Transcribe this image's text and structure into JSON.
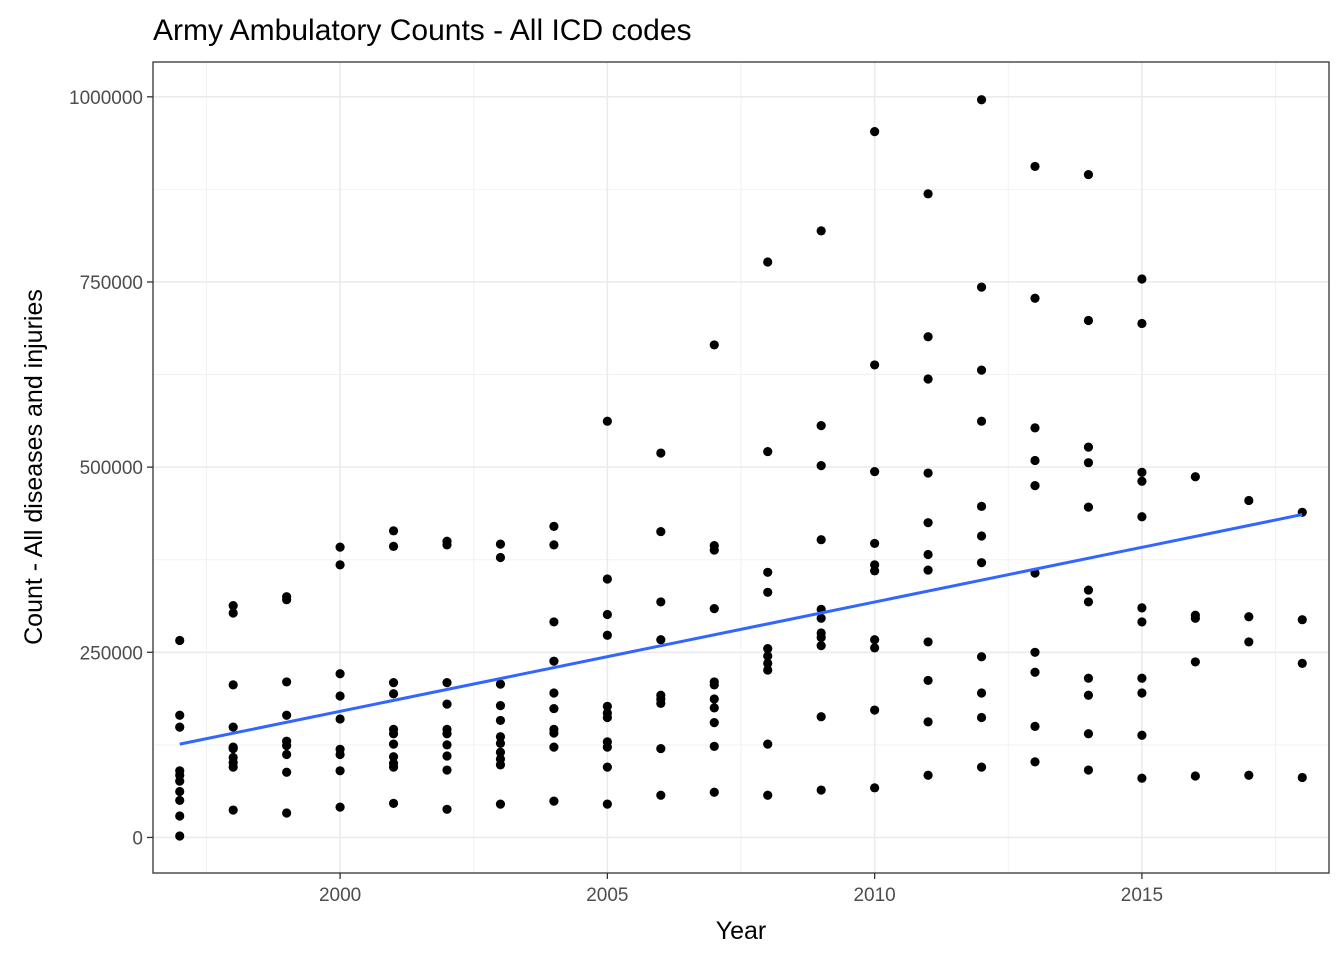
{
  "chart_data": {
    "type": "scatter",
    "title": "Army Ambulatory Counts - All ICD codes",
    "xlabel": "Year",
    "ylabel": "Count - All diseases and injuries",
    "xlim": [
      1996.5,
      2018.5
    ],
    "ylim": [
      -48000,
      1047000
    ],
    "x_ticks": [
      2000,
      2005,
      2010,
      2015
    ],
    "x_tick_labels": [
      "2000",
      "2005",
      "2010",
      "2015"
    ],
    "y_ticks": [
      0,
      250000,
      500000,
      750000,
      1000000
    ],
    "y_tick_labels": [
      "0",
      "250000",
      "500000",
      "750000",
      "1000000"
    ],
    "grid": true,
    "trend_line": {
      "method": "linear",
      "color": "#3366ff",
      "start": [
        1997,
        126000
      ],
      "end": [
        2018,
        436000
      ]
    },
    "points": [
      [
        1997,
        266000
      ],
      [
        1997,
        165000
      ],
      [
        1997,
        149000
      ],
      [
        1997,
        90000
      ],
      [
        1997,
        84000
      ],
      [
        1997,
        76000
      ],
      [
        1997,
        62000
      ],
      [
        1997,
        50000
      ],
      [
        1997,
        29000
      ],
      [
        1997,
        2000
      ],
      [
        1998,
        313000
      ],
      [
        1998,
        303000
      ],
      [
        1998,
        206000
      ],
      [
        1998,
        149000
      ],
      [
        1998,
        122000
      ],
      [
        1998,
        120000
      ],
      [
        1998,
        108000
      ],
      [
        1998,
        101000
      ],
      [
        1998,
        95000
      ],
      [
        1998,
        37000
      ],
      [
        1999,
        325000
      ],
      [
        1999,
        321000
      ],
      [
        1999,
        210000
      ],
      [
        1999,
        165000
      ],
      [
        1999,
        130000
      ],
      [
        1999,
        124000
      ],
      [
        1999,
        112000
      ],
      [
        1999,
        88000
      ],
      [
        1999,
        33000
      ],
      [
        2000,
        392000
      ],
      [
        2000,
        368000
      ],
      [
        2000,
        221000
      ],
      [
        2000,
        191000
      ],
      [
        2000,
        160000
      ],
      [
        2000,
        119000
      ],
      [
        2000,
        112000
      ],
      [
        2000,
        90000
      ],
      [
        2000,
        41000
      ],
      [
        2001,
        414000
      ],
      [
        2001,
        393000
      ],
      [
        2001,
        209000
      ],
      [
        2001,
        194000
      ],
      [
        2001,
        146000
      ],
      [
        2001,
        140000
      ],
      [
        2001,
        126000
      ],
      [
        2001,
        109000
      ],
      [
        2001,
        100000
      ],
      [
        2001,
        95000
      ],
      [
        2001,
        46000
      ],
      [
        2002,
        400000
      ],
      [
        2002,
        395000
      ],
      [
        2002,
        209000
      ],
      [
        2002,
        180000
      ],
      [
        2002,
        146000
      ],
      [
        2002,
        140000
      ],
      [
        2002,
        125000
      ],
      [
        2002,
        110000
      ],
      [
        2002,
        91000
      ],
      [
        2002,
        38000
      ],
      [
        2003,
        396000
      ],
      [
        2003,
        378000
      ],
      [
        2003,
        207000
      ],
      [
        2003,
        178000
      ],
      [
        2003,
        158000
      ],
      [
        2003,
        136000
      ],
      [
        2003,
        127000
      ],
      [
        2003,
        115000
      ],
      [
        2003,
        106000
      ],
      [
        2003,
        98000
      ],
      [
        2003,
        45000
      ],
      [
        2004,
        420000
      ],
      [
        2004,
        395000
      ],
      [
        2004,
        291000
      ],
      [
        2004,
        238000
      ],
      [
        2004,
        195000
      ],
      [
        2004,
        174000
      ],
      [
        2004,
        146000
      ],
      [
        2004,
        141000
      ],
      [
        2004,
        122000
      ],
      [
        2004,
        49000
      ],
      [
        2005,
        562000
      ],
      [
        2005,
        349000
      ],
      [
        2005,
        301000
      ],
      [
        2005,
        273000
      ],
      [
        2005,
        177000
      ],
      [
        2005,
        168000
      ],
      [
        2005,
        162000
      ],
      [
        2005,
        129000
      ],
      [
        2005,
        122000
      ],
      [
        2005,
        95000
      ],
      [
        2005,
        45000
      ],
      [
        2006,
        519000
      ],
      [
        2006,
        413000
      ],
      [
        2006,
        318000
      ],
      [
        2006,
        267000
      ],
      [
        2006,
        192000
      ],
      [
        2006,
        187000
      ],
      [
        2006,
        181000
      ],
      [
        2006,
        120000
      ],
      [
        2006,
        57000
      ],
      [
        2007,
        665000
      ],
      [
        2007,
        394000
      ],
      [
        2007,
        388000
      ],
      [
        2007,
        309000
      ],
      [
        2007,
        210000
      ],
      [
        2007,
        206000
      ],
      [
        2007,
        187000
      ],
      [
        2007,
        175000
      ],
      [
        2007,
        155000
      ],
      [
        2007,
        123000
      ],
      [
        2007,
        61000
      ],
      [
        2008,
        777000
      ],
      [
        2008,
        521000
      ],
      [
        2008,
        358000
      ],
      [
        2008,
        331000
      ],
      [
        2008,
        255000
      ],
      [
        2008,
        245000
      ],
      [
        2008,
        235000
      ],
      [
        2008,
        226000
      ],
      [
        2008,
        126000
      ],
      [
        2008,
        57000
      ],
      [
        2009,
        819000
      ],
      [
        2009,
        556000
      ],
      [
        2009,
        502000
      ],
      [
        2009,
        402000
      ],
      [
        2009,
        308000
      ],
      [
        2009,
        296000
      ],
      [
        2009,
        276000
      ],
      [
        2009,
        270000
      ],
      [
        2009,
        259000
      ],
      [
        2009,
        163000
      ],
      [
        2009,
        64000
      ],
      [
        2010,
        953000
      ],
      [
        2010,
        638000
      ],
      [
        2010,
        494000
      ],
      [
        2010,
        397000
      ],
      [
        2010,
        368000
      ],
      [
        2010,
        360000
      ],
      [
        2010,
        267000
      ],
      [
        2010,
        256000
      ],
      [
        2010,
        172000
      ],
      [
        2010,
        67000
      ],
      [
        2011,
        869000
      ],
      [
        2011,
        676000
      ],
      [
        2011,
        619000
      ],
      [
        2011,
        492000
      ],
      [
        2011,
        425000
      ],
      [
        2011,
        382000
      ],
      [
        2011,
        361000
      ],
      [
        2011,
        264000
      ],
      [
        2011,
        212000
      ],
      [
        2011,
        156000
      ],
      [
        2011,
        84000
      ],
      [
        2012,
        996000
      ],
      [
        2012,
        743000
      ],
      [
        2012,
        631000
      ],
      [
        2012,
        562000
      ],
      [
        2012,
        447000
      ],
      [
        2012,
        407000
      ],
      [
        2012,
        371000
      ],
      [
        2012,
        244000
      ],
      [
        2012,
        195000
      ],
      [
        2012,
        162000
      ],
      [
        2012,
        95000
      ],
      [
        2013,
        906000
      ],
      [
        2013,
        728000
      ],
      [
        2013,
        553000
      ],
      [
        2013,
        509000
      ],
      [
        2013,
        475000
      ],
      [
        2013,
        357000
      ],
      [
        2013,
        250000
      ],
      [
        2013,
        223000
      ],
      [
        2013,
        150000
      ],
      [
        2013,
        102000
      ],
      [
        2014,
        895000
      ],
      [
        2014,
        698000
      ],
      [
        2014,
        527000
      ],
      [
        2014,
        506000
      ],
      [
        2014,
        446000
      ],
      [
        2014,
        334000
      ],
      [
        2014,
        318000
      ],
      [
        2014,
        215000
      ],
      [
        2014,
        192000
      ],
      [
        2014,
        140000
      ],
      [
        2014,
        91000
      ],
      [
        2015,
        754000
      ],
      [
        2015,
        694000
      ],
      [
        2015,
        493000
      ],
      [
        2015,
        481000
      ],
      [
        2015,
        433000
      ],
      [
        2015,
        310000
      ],
      [
        2015,
        291000
      ],
      [
        2015,
        215000
      ],
      [
        2015,
        195000
      ],
      [
        2015,
        138000
      ],
      [
        2015,
        80000
      ],
      [
        2016,
        487000
      ],
      [
        2016,
        300000
      ],
      [
        2016,
        296000
      ],
      [
        2016,
        237000
      ],
      [
        2016,
        83000
      ],
      [
        2017,
        455000
      ],
      [
        2017,
        298000
      ],
      [
        2017,
        264000
      ],
      [
        2017,
        84000
      ],
      [
        2018,
        439000
      ],
      [
        2018,
        294000
      ],
      [
        2018,
        235000
      ],
      [
        2018,
        81000
      ]
    ]
  }
}
